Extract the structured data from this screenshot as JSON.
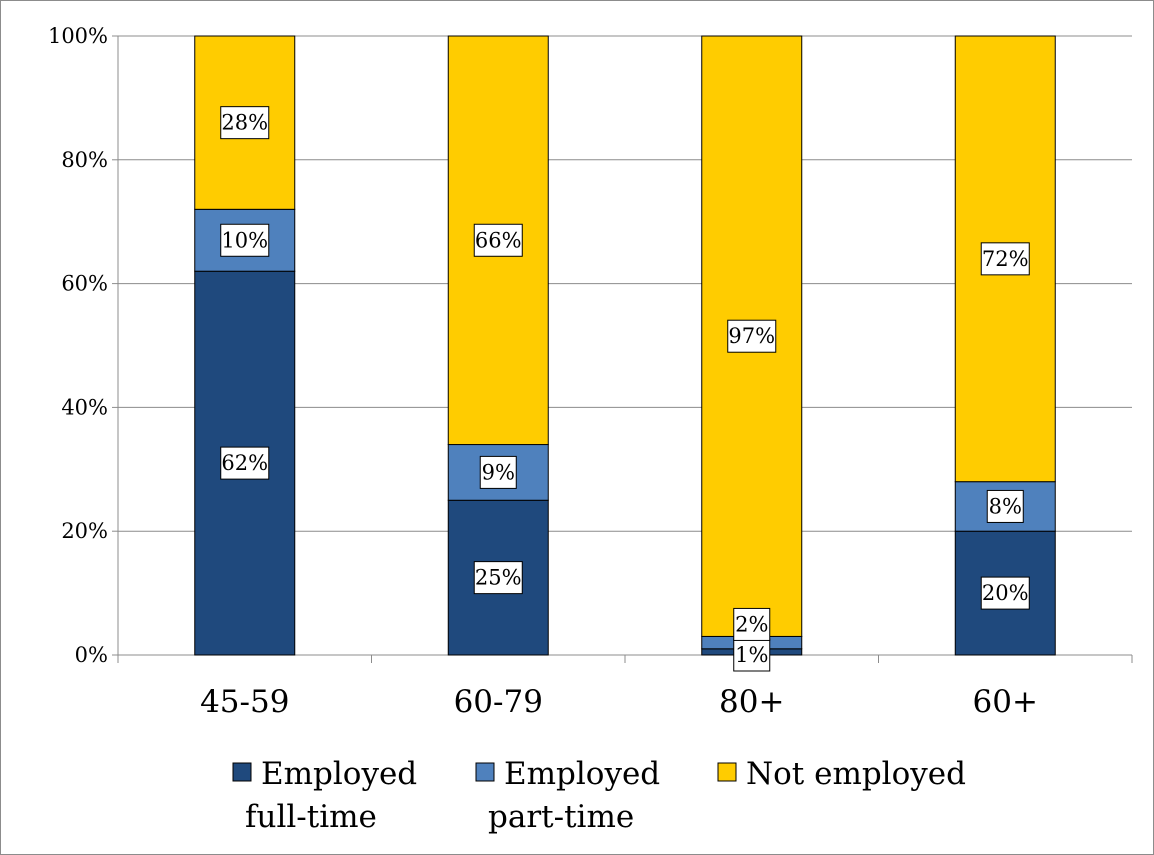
{
  "chart_data": {
    "type": "bar",
    "stacked": true,
    "categories": [
      "45-59",
      "60-79",
      "80+",
      "60+"
    ],
    "series": [
      {
        "name": "Employed full-time",
        "legend_lines": [
          "Employed",
          "full-time"
        ],
        "color": "#1F497D",
        "values": [
          62,
          25,
          1,
          20
        ],
        "labels": [
          "62%",
          "25%",
          "1%",
          "20%"
        ]
      },
      {
        "name": "Employed part-time",
        "legend_lines": [
          "Employed",
          "part-time"
        ],
        "color": "#4F81BD",
        "values": [
          10,
          9,
          2,
          8
        ],
        "labels": [
          "10%",
          "9%",
          "2%",
          "8%"
        ]
      },
      {
        "name": "Not employed",
        "legend_lines": [
          "Not employed"
        ],
        "color": "#FFCC00",
        "values": [
          28,
          66,
          97,
          72
        ],
        "labels": [
          "28%",
          "66%",
          "97%",
          "72%"
        ]
      }
    ],
    "ylim": [
      0,
      100
    ],
    "yticks": [
      0,
      20,
      40,
      60,
      80,
      100
    ],
    "ytick_labels": [
      "0%",
      "20%",
      "40%",
      "60%",
      "80%",
      "100%"
    ],
    "grid": true,
    "legend_position": "bottom"
  }
}
